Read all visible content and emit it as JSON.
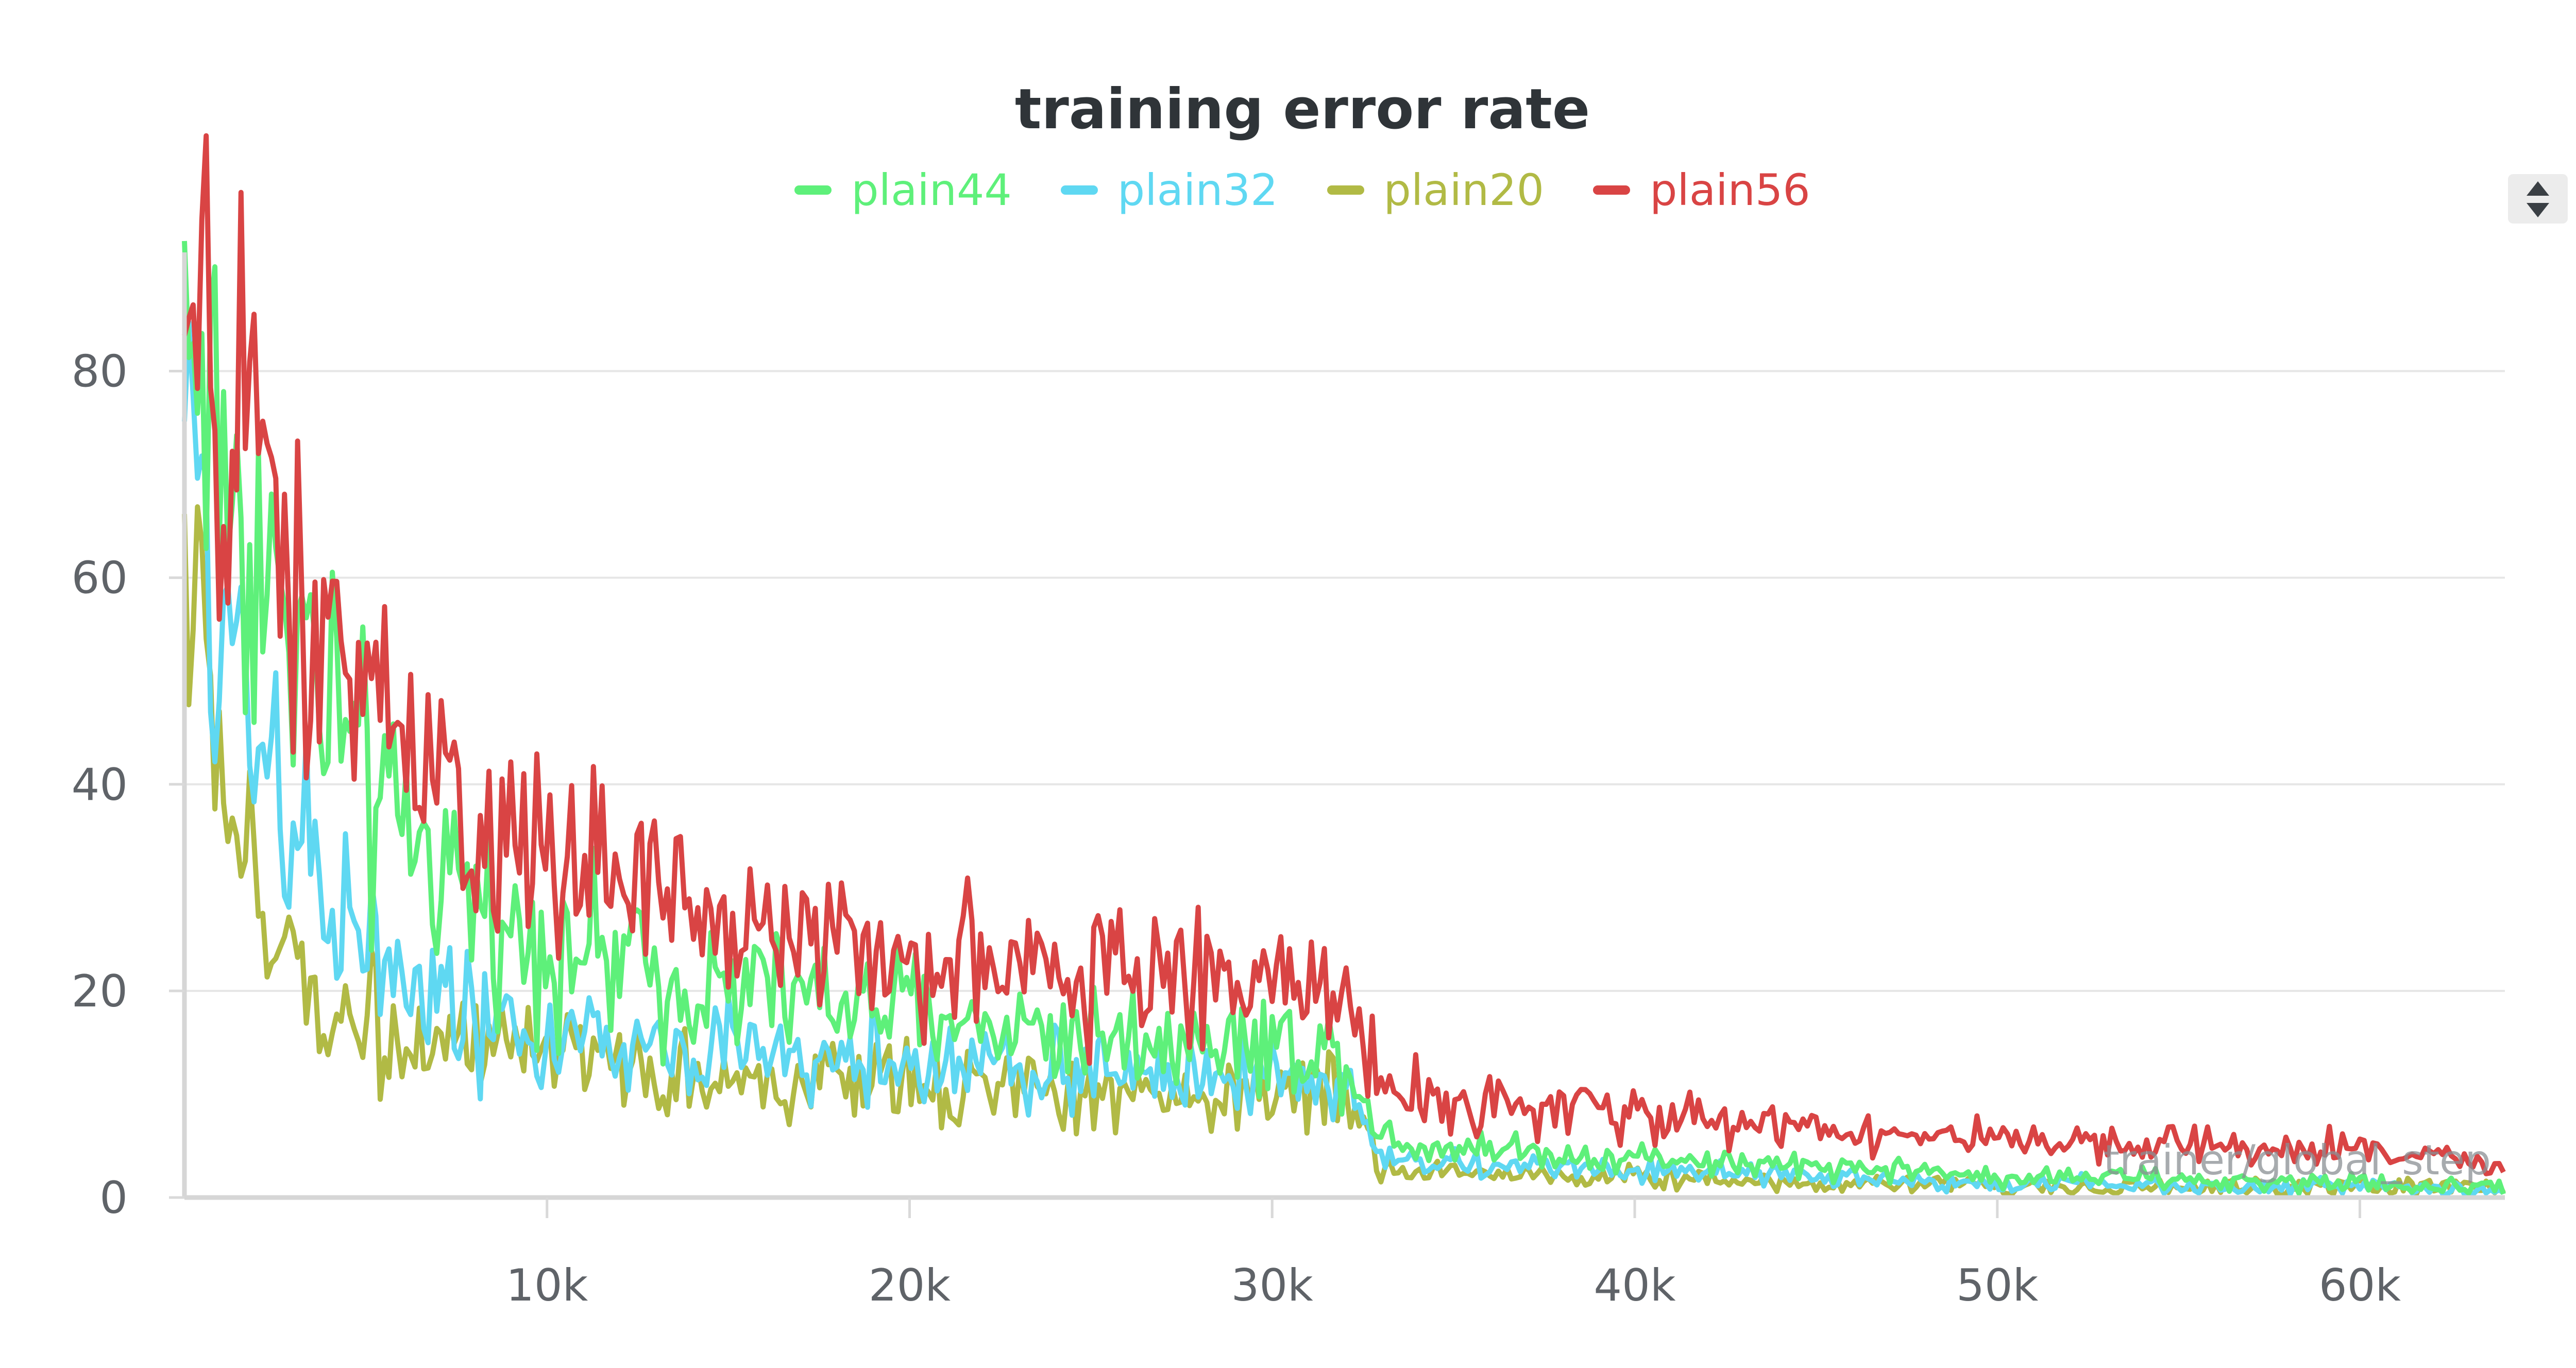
{
  "chart_data": {
    "type": "line",
    "title": "training error rate",
    "xlabel": "trainer/global_step",
    "ylabel": "",
    "xlim": [
      0,
      64000
    ],
    "ylim": [
      0,
      90
    ],
    "xticks": [
      10000,
      20000,
      30000,
      40000,
      50000,
      60000
    ],
    "xtick_labels": [
      "10k",
      "20k",
      "30k",
      "40k",
      "50k",
      "60k"
    ],
    "yticks": [
      0,
      20,
      40,
      60,
      80
    ],
    "ytick_labels": [
      "0",
      "20",
      "40",
      "60",
      "80"
    ],
    "grid": true,
    "legend_position": "top",
    "x": [
      0,
      1000,
      2000,
      3000,
      4000,
      5000,
      6000,
      8000,
      10000,
      12000,
      14000,
      16000,
      18000,
      20000,
      22000,
      24000,
      26000,
      28000,
      30000,
      32000,
      33000,
      34000,
      36000,
      38000,
      40000,
      42000,
      44000,
      46000,
      48000,
      50000,
      52000,
      54000,
      56000,
      58000,
      60000,
      62000,
      64000
    ],
    "series": [
      {
        "name": "plain44",
        "color": "#5ef07a",
        "values": [
          88,
          72,
          63,
          55,
          47,
          40,
          35,
          28,
          25,
          23,
          21,
          20,
          19,
          18,
          17,
          16,
          16,
          15,
          15,
          14,
          6,
          5,
          5,
          4,
          4,
          3.5,
          3,
          3,
          2.5,
          2,
          2,
          2,
          1.5,
          1.5,
          1.5,
          1,
          1
        ]
      },
      {
        "name": "plain32",
        "color": "#5fd8f2",
        "values": [
          72,
          58,
          48,
          38,
          30,
          24,
          21,
          17,
          15,
          15,
          14,
          14,
          13,
          13,
          13,
          12,
          12,
          12,
          12,
          11,
          4,
          3.5,
          3,
          3,
          2.5,
          2.5,
          2,
          2,
          1.5,
          1.5,
          1.5,
          1,
          1,
          1,
          1,
          1,
          0.5
        ]
      },
      {
        "name": "plain20",
        "color": "#b1ba45",
        "values": [
          64,
          42,
          27,
          22,
          19,
          17,
          16,
          14,
          13,
          12,
          12,
          11,
          11,
          11,
          11,
          10,
          10,
          10,
          10,
          10,
          3,
          2.5,
          2.5,
          2,
          2,
          2,
          1.5,
          1.5,
          1.5,
          1,
          1,
          1,
          1,
          1,
          1,
          1,
          1
        ]
      },
      {
        "name": "plain56",
        "color": "#d94444",
        "values": [
          82,
          75,
          68,
          60,
          53,
          47,
          43,
          36,
          33,
          30,
          28,
          26,
          25,
          24,
          23,
          22,
          22,
          21,
          21,
          20,
          11,
          10,
          9,
          8.5,
          8,
          7.5,
          7,
          6.5,
          6,
          5.5,
          5,
          5,
          5,
          4.5,
          4.5,
          4,
          3
        ]
      }
    ]
  }
}
